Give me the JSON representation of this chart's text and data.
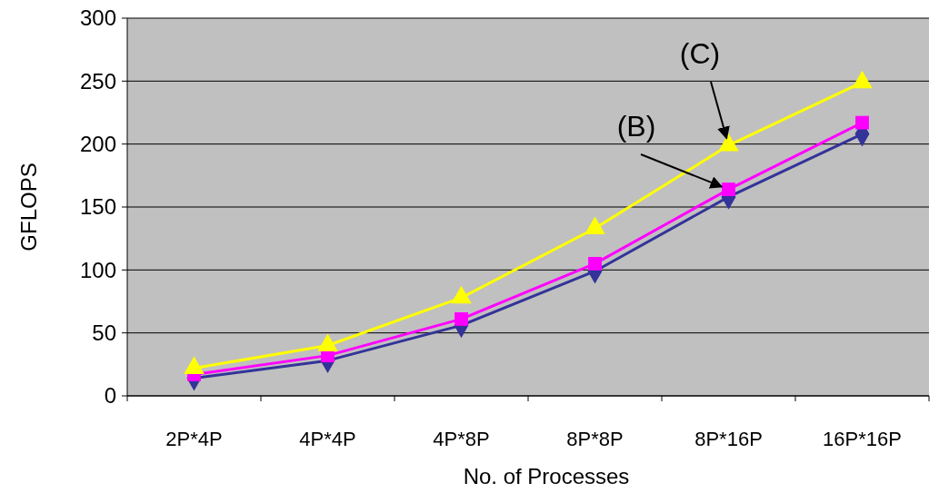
{
  "chart_data": {
    "type": "line",
    "xlabel": "No. of Processes",
    "ylabel": "GFLOPS",
    "categories": [
      "2P*4P",
      "4P*4P",
      "4P*8P",
      "8P*8P",
      "8P*16P",
      "16P*16P"
    ],
    "series": [
      {
        "color": "#333399",
        "marker": "diamond",
        "values": [
          14,
          28,
          56,
          99,
          158,
          208
        ]
      },
      {
        "color": "#ff00ff",
        "marker": "square",
        "values": [
          17,
          32,
          61,
          105,
          164,
          217
        ]
      },
      {
        "color": "#ffff00",
        "marker": "triangle",
        "values": [
          22,
          40,
          78,
          133,
          199,
          249
        ]
      }
    ],
    "ylim": [
      0,
      300
    ],
    "yticks": [
      0,
      50,
      100,
      150,
      200,
      250,
      300
    ],
    "grid": "y",
    "line_style": "solid",
    "annotations": [
      {
        "text": "(B)",
        "x": "8P*16P",
        "y": 164
      },
      {
        "text": "(C)",
        "x": "8P*16P",
        "y": 199
      }
    ]
  }
}
